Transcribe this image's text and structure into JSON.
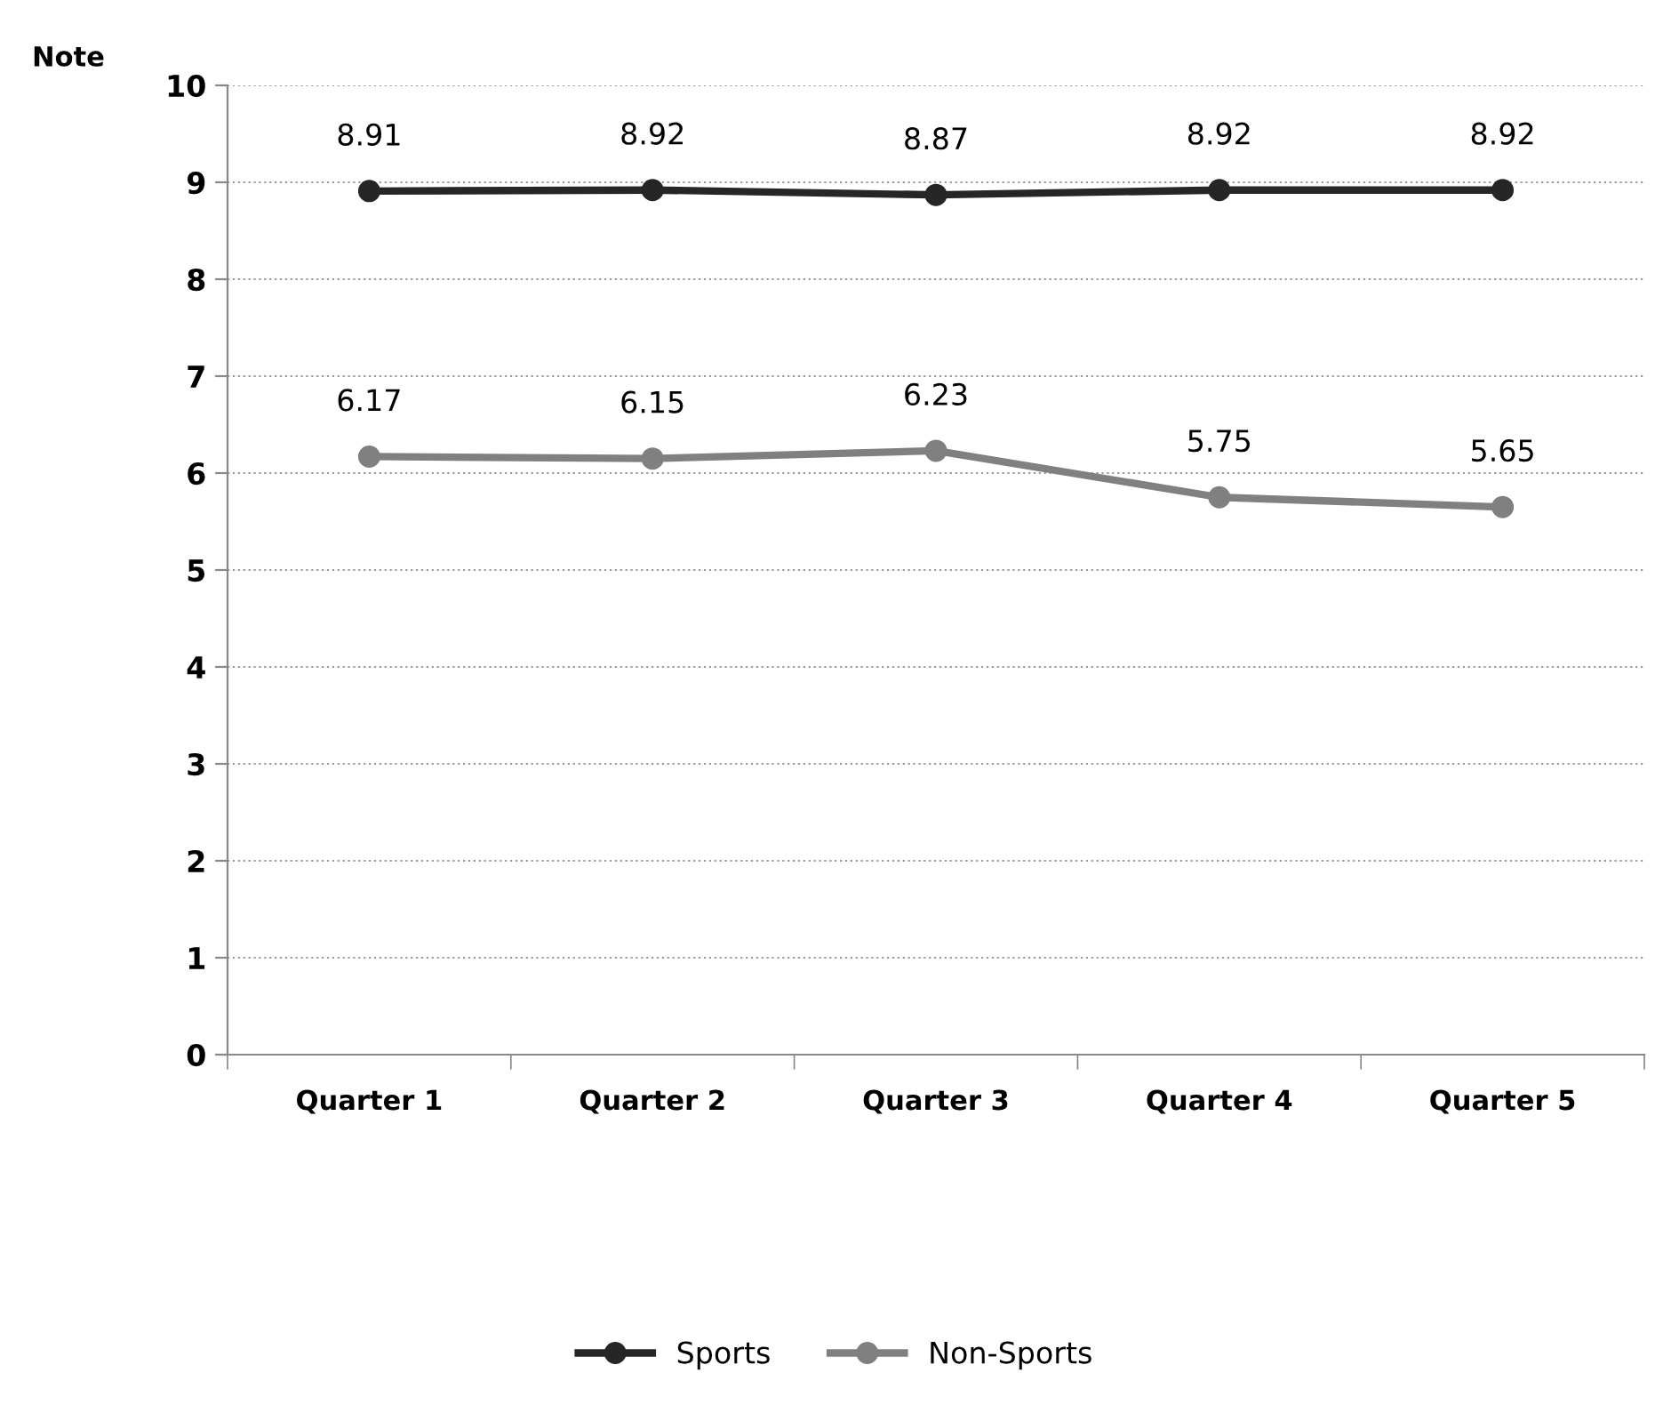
{
  "chart_data": {
    "type": "line",
    "ylabel": "Note",
    "categories": [
      "Quarter 1",
      "Quarter 2",
      "Quarter 3",
      "Quarter 4",
      "Quarter 5"
    ],
    "series": [
      {
        "name": "Sports",
        "color": "#262626",
        "values": [
          8.91,
          8.92,
          8.87,
          8.92,
          8.92
        ]
      },
      {
        "name": "Non-Sports",
        "color": "#808080",
        "values": [
          6.17,
          6.15,
          6.23,
          5.75,
          5.65
        ]
      }
    ],
    "ylim": [
      0,
      10
    ],
    "yticks": [
      0,
      1,
      2,
      3,
      4,
      5,
      6,
      7,
      8,
      9,
      10
    ],
    "grid": "y",
    "legend": "bottom",
    "marker": "circle",
    "line_style": "solid",
    "data_labels": true
  }
}
